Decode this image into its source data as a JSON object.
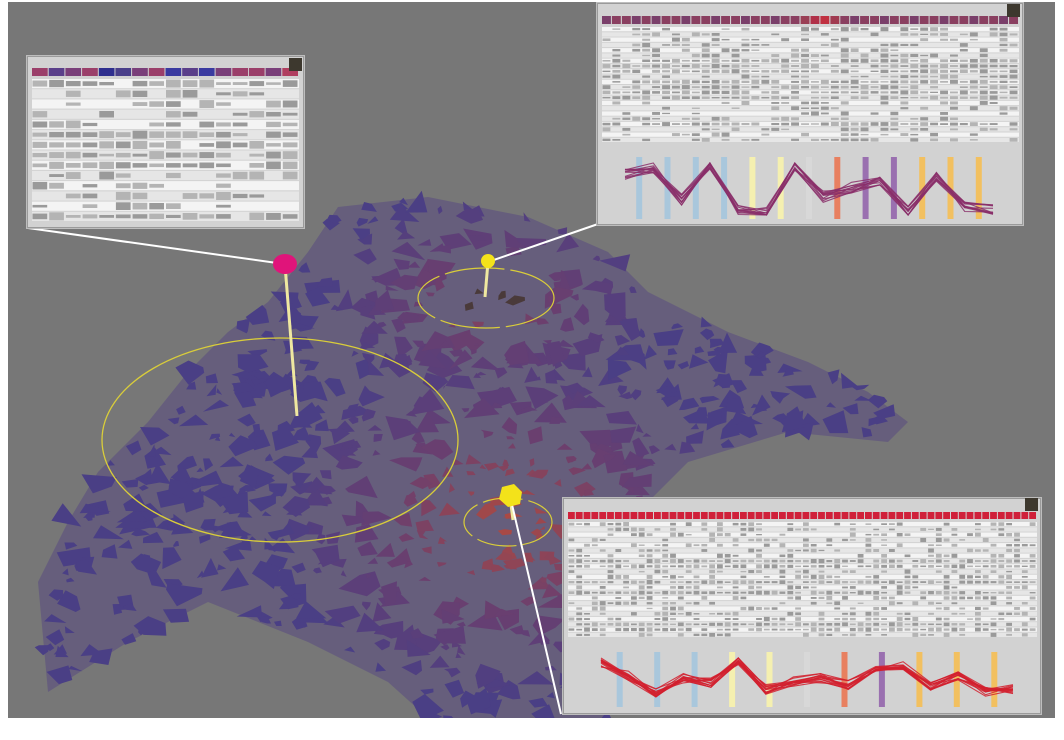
{
  "scene": {
    "background": "#777777",
    "region_colors": {
      "cold": "#4a3f85",
      "mid": "#6a3f6f",
      "warm": "#8a4550",
      "hot": "#b04a40"
    },
    "ring_color": "#d9cd3a",
    "stem_color": "#efe8a0"
  },
  "markers": [
    {
      "name": "marker-magenta",
      "color": "#e0147a"
    },
    {
      "name": "marker-yellow-top",
      "color": "#f3e21a"
    },
    {
      "name": "marker-yellow-bottom",
      "color": "#f3e21a"
    }
  ],
  "panels": [
    {
      "name": "detail-panel-left",
      "columns": 16,
      "rows": 14,
      "header_colors": [
        "#9b3f6a",
        "#5a3f8a",
        "#7a3f7a",
        "#9b3f6a",
        "#2e2e8e",
        "#4a3f8a",
        "#7a3f7a",
        "#9b3f6a",
        "#3a3aa0",
        "#5a3f8a",
        "#3a3aa0",
        "#7a3f7a",
        "#9b3f6a",
        "#9b3f6a",
        "#7a3f7a",
        "#b03f60"
      ],
      "has_chart": false
    },
    {
      "name": "detail-panel-top-right",
      "columns": 42,
      "rows": 22,
      "header_colors": [
        "#7a3f6a",
        "#8a3f60",
        "#8a3f60",
        "#7a3f6a",
        "#8a3f60",
        "#7a3f6a",
        "#8a3f60",
        "#8a3f60",
        "#7a3f6a",
        "#8a3f60",
        "#8a3f60",
        "#7a3f6a",
        "#8a3f60",
        "#8a3f60",
        "#7a3f6a",
        "#8a3f60",
        "#8a3f60",
        "#7a3f6a",
        "#8a3f60",
        "#8a3f60",
        "#9a3f55",
        "#b03048",
        "#c03040",
        "#a03a50",
        "#8a3f60",
        "#7a3f6a",
        "#8a3f60",
        "#8a3f60",
        "#7a3f6a",
        "#8a3f60",
        "#8a3f60",
        "#7a3f6a",
        "#8a3f60",
        "#8a3f60",
        "#7a3f6a",
        "#8a3f60",
        "#8a3f60",
        "#7a3f6a",
        "#8a3f60",
        "#8a3f60",
        "#7a3f6a",
        "#8a3f60"
      ],
      "has_chart": true,
      "chart": {
        "line_color": "#8a2f6a",
        "line_count": 12,
        "axis_colors": [
          "#a9c7dc",
          "#a9c7dc",
          "#a9c7dc",
          "#a9c7dc",
          "#f5f0b0",
          "#f5f0b0",
          "#d8d8d8",
          "#e88060",
          "#9a70b0",
          "#9a70b0",
          "#f2c060",
          "#f2c060",
          "#f2c060"
        ],
        "profile": [
          0.78,
          0.92,
          0.3,
          0.98,
          0.1,
          0.04,
          0.95,
          0.35,
          0.52,
          0.62,
          0.06,
          0.72,
          0.15,
          0.1
        ]
      }
    },
    {
      "name": "detail-panel-bottom-right",
      "columns": 60,
      "rows": 22,
      "header_colors": [
        "#d0203a"
      ],
      "has_chart": true,
      "chart": {
        "line_color": "#d2202e",
        "line_count": 14,
        "axis_colors": [
          "#a9c7dc",
          "#a9c7dc",
          "#a9c7dc",
          "#f5f0b0",
          "#f5f0b0",
          "#d8d8d8",
          "#e88060",
          "#9a70b0",
          "#f2c060",
          "#f2c060",
          "#f2c060"
        ],
        "profile": [
          0.9,
          0.6,
          0.22,
          0.55,
          0.45,
          0.95,
          0.3,
          0.48,
          0.55,
          0.4,
          0.72,
          0.82,
          0.35,
          0.6,
          0.25,
          0.3
        ]
      }
    }
  ]
}
